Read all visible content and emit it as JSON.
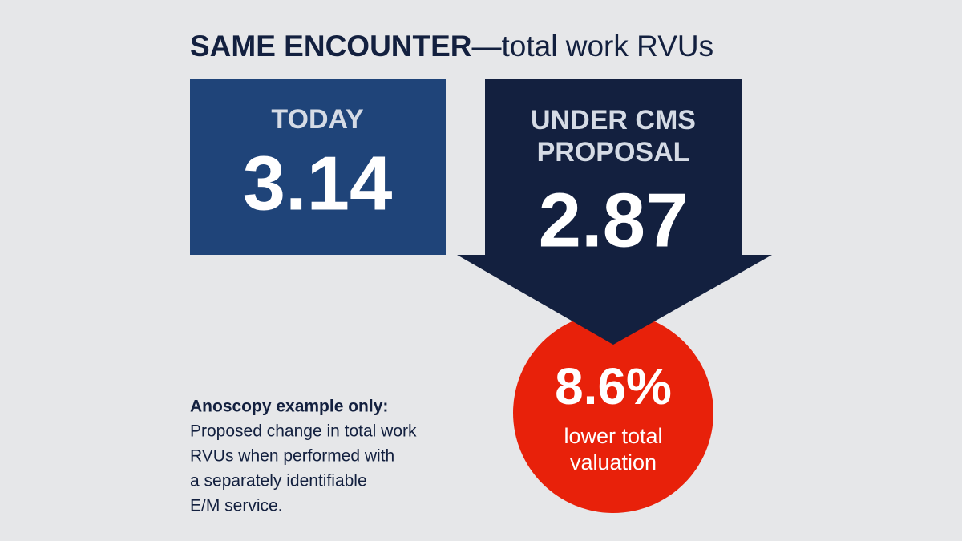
{
  "header": {
    "title_bold": "SAME ENCOUNTER",
    "title_rest": "—total work RVUs"
  },
  "today": {
    "label": "TODAY",
    "value": "3.14"
  },
  "proposal": {
    "label_lines": [
      "UNDER CMS",
      "PROPOSAL"
    ],
    "value": "2.87"
  },
  "change": {
    "value": "8.6%",
    "caption_lines": [
      "lower total",
      "valuation"
    ]
  },
  "note": {
    "heading": "Anoscopy example only:",
    "lines": [
      "Proposed change in total work",
      "RVUs when performed with",
      "a separately identifiable",
      "E/M service."
    ]
  }
}
